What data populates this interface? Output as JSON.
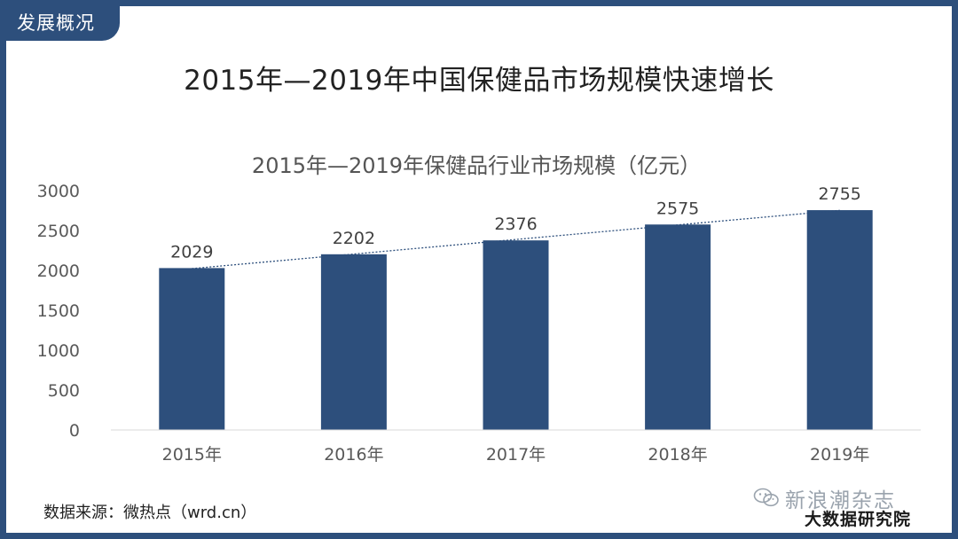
{
  "section_tab": "发展概况",
  "page_title": "2015年—2019年中国保健品市场规模快速增长",
  "source_text": "数据来源：微热点（wrd.cn）",
  "watermark": {
    "name": "新浪潮杂志",
    "sub": "大数据研究院",
    "icon": "wechat-icon"
  },
  "colors": {
    "frame": "#2d4f7c",
    "bar": "#2d4f7c",
    "trend": "#2d4f7c"
  },
  "chart_data": {
    "type": "bar",
    "title": "2015年—2019年保健品行业市场规模（亿元）",
    "categories": [
      "2015年",
      "2016年",
      "2017年",
      "2018年",
      "2019年"
    ],
    "values": [
      2029,
      2202,
      2376,
      2575,
      2755
    ],
    "data_labels": [
      "2029",
      "2202",
      "2376",
      "2575",
      "2755"
    ],
    "ylim": [
      0,
      3000
    ],
    "yticks": [
      0,
      500,
      1000,
      1500,
      2000,
      2500,
      3000
    ],
    "ytick_labels": [
      "0",
      "500",
      "1000",
      "1500",
      "2000",
      "2500",
      "3000"
    ],
    "grid": false,
    "legend": "none",
    "trendline": "linear-dotted"
  }
}
